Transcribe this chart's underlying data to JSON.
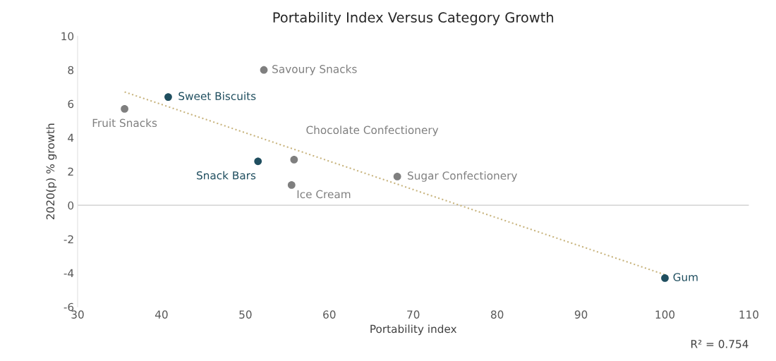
{
  "chart_data": {
    "type": "scatter",
    "title": "Portability Index Versus Category Growth",
    "xlabel": "Portability index",
    "ylabel": "2020(p) % growth",
    "xlim": [
      30,
      110
    ],
    "xticks": [
      30,
      40,
      50,
      60,
      70,
      80,
      90,
      100,
      110
    ],
    "ylim": [
      -6,
      10
    ],
    "yticks": [
      -6,
      -4,
      -2,
      0,
      2,
      4,
      6,
      8,
      10
    ],
    "grid": false,
    "legend": false,
    "marker": "circle",
    "series": [
      {
        "name": "Fruit Snacks",
        "color": "#7f7f7f",
        "x": [
          35.6
        ],
        "values": [
          5.7
        ]
      },
      {
        "name": "Sweet Biscuits",
        "color": "#1f4e5f",
        "x": [
          40.8
        ],
        "values": [
          6.4
        ]
      },
      {
        "name": "Savoury Snacks",
        "color": "#7f7f7f",
        "x": [
          52.2
        ],
        "values": [
          8.0
        ]
      },
      {
        "name": "Snack Bars",
        "color": "#1f4e5f",
        "x": [
          51.5
        ],
        "values": [
          2.6
        ]
      },
      {
        "name": "Chocolate Confectionery",
        "color": "#7f7f7f",
        "x": [
          55.8
        ],
        "values": [
          2.7
        ]
      },
      {
        "name": "Ice Cream",
        "color": "#7f7f7f",
        "x": [
          55.5
        ],
        "values": [
          1.2
        ]
      },
      {
        "name": "Sugar Confectionery",
        "color": "#7f7f7f",
        "x": [
          68.1
        ],
        "values": [
          1.7
        ]
      },
      {
        "name": "Gum",
        "color": "#1f4e5f",
        "x": [
          100
        ],
        "values": [
          -4.3
        ]
      },
      {
        "type": "line",
        "color": "#c8b47e",
        "line_style": "dotted",
        "marker": "none",
        "x": [
          35.6,
          100
        ],
        "values": [
          6.7,
          -4.1
        ]
      }
    ],
    "ref_lines": [
      {
        "axis": "y",
        "value": 0,
        "color": "#d9d9d9"
      }
    ],
    "annotations": [
      "R² = 0.754"
    ]
  }
}
